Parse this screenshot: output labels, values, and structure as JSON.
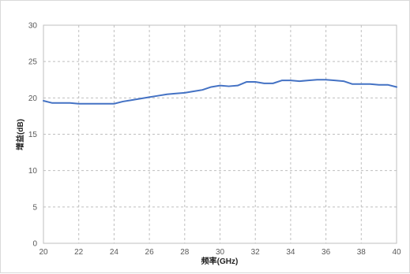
{
  "chart_data": {
    "type": "line",
    "title": "",
    "xlabel": "频率(GHz)",
    "ylabel": "增益(dB)",
    "xlim": [
      20,
      40
    ],
    "ylim": [
      0,
      30
    ],
    "xticks": [
      20,
      22,
      24,
      26,
      28,
      30,
      32,
      34,
      36,
      38,
      40
    ],
    "yticks": [
      0,
      5,
      10,
      15,
      20,
      25,
      30
    ],
    "grid": "dashed",
    "legend": "none",
    "series": [
      {
        "color": "#4472c4",
        "x": [
          20,
          20.5,
          21,
          21.5,
          22,
          22.5,
          23,
          23.5,
          24,
          24.5,
          25,
          25.5,
          26,
          26.5,
          27,
          27.5,
          28,
          28.5,
          29,
          29.5,
          30,
          30.5,
          31,
          31.5,
          32,
          32.5,
          33,
          33.5,
          34,
          34.5,
          35,
          35.5,
          36,
          36.5,
          37,
          37.5,
          38,
          38.5,
          39,
          39.5,
          40
        ],
        "y": [
          19.6,
          19.3,
          19.3,
          19.3,
          19.2,
          19.2,
          19.2,
          19.2,
          19.2,
          19.5,
          19.7,
          19.9,
          20.1,
          20.3,
          20.5,
          20.6,
          20.7,
          20.9,
          21.1,
          21.5,
          21.7,
          21.6,
          21.7,
          22.2,
          22.2,
          22.0,
          22.0,
          22.4,
          22.4,
          22.3,
          22.4,
          22.5,
          22.5,
          22.4,
          22.3,
          21.9,
          21.9,
          21.9,
          21.8,
          21.8,
          21.5
        ]
      }
    ]
  }
}
